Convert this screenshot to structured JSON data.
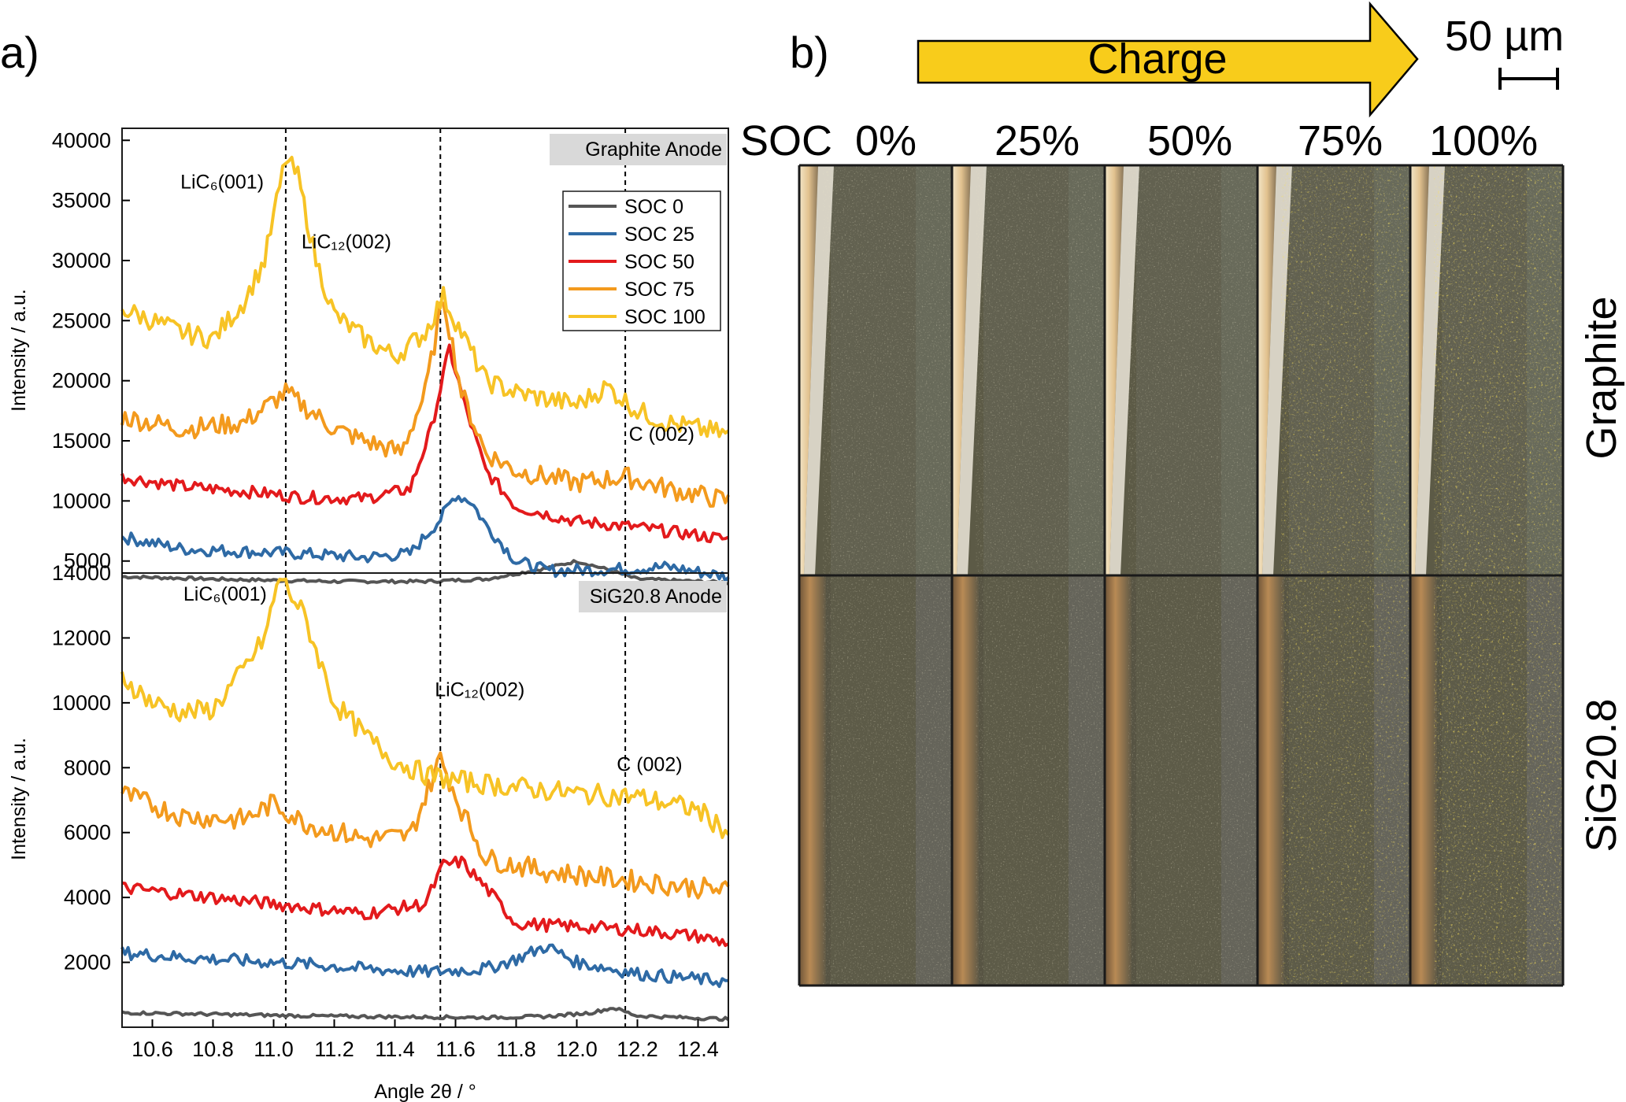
{
  "panel_a_label": "a)",
  "panel_b_label": "b)",
  "colors": {
    "SOC 0": "#555555",
    "SOC 25": "#2e6aa5",
    "SOC 50": "#e31a1c",
    "SOC 75": "#f39a1d",
    "SOC 100": "#f7c325",
    "frame": "#1a1a1a",
    "charge_arrow": "#f8cc1b"
  },
  "chart_data": [
    {
      "type": "line",
      "title": "Graphite Anode",
      "xlabel": "",
      "ylabel": "Intensity / a.u.",
      "xlim": [
        10.5,
        12.5
      ],
      "ylim": [
        4000,
        41000
      ],
      "yticks": [
        5000,
        10000,
        15000,
        20000,
        25000,
        30000,
        35000,
        40000
      ],
      "ytick_labels": [
        "5000",
        "10000",
        "15000",
        "20000",
        "25000",
        "30000",
        "35000",
        "40000"
      ],
      "reference_lines_x": [
        11.04,
        11.55,
        12.16
      ],
      "annotations": [
        {
          "text": "LiC₆(001)",
          "x": 10.83,
          "y": 36000
        },
        {
          "text": "LiC₁₂(002)",
          "x": 11.24,
          "y": 31000
        },
        {
          "text": "C (002)",
          "x": 12.28,
          "y": 15000
        }
      ],
      "legend_position": "top-right",
      "series": [
        {
          "name": "SOC 0",
          "x": [
            10.5,
            10.8,
            11.0,
            11.2,
            11.5,
            11.7,
            11.9,
            12.0,
            12.1,
            12.2,
            12.5
          ],
          "y": [
            3700,
            3500,
            3400,
            3300,
            3300,
            3500,
            4400,
            5000,
            4300,
            3500,
            3200
          ]
        },
        {
          "name": "SOC 25",
          "x": [
            10.5,
            10.7,
            10.9,
            11.1,
            11.3,
            11.45,
            11.55,
            11.6,
            11.65,
            11.7,
            11.8,
            11.9,
            12.1,
            12.3,
            12.5
          ],
          "y": [
            7000,
            6000,
            5800,
            5600,
            5300,
            5600,
            8500,
            10500,
            10000,
            8000,
            5000,
            4200,
            4300,
            4500,
            3700
          ]
        },
        {
          "name": "SOC 50",
          "x": [
            10.5,
            10.7,
            10.9,
            11.1,
            11.3,
            11.45,
            11.52,
            11.58,
            11.63,
            11.7,
            11.8,
            12.0,
            12.2,
            12.5
          ],
          "y": [
            12000,
            11200,
            10800,
            10300,
            10200,
            11000,
            16000,
            22700,
            18000,
            12500,
            9500,
            8300,
            7800,
            6800
          ]
        },
        {
          "name": "SOC 75",
          "x": [
            10.5,
            10.7,
            10.9,
            11.04,
            11.2,
            11.3,
            11.42,
            11.5,
            11.56,
            11.62,
            11.7,
            11.8,
            12.0,
            12.16,
            12.3,
            12.5
          ],
          "y": [
            17000,
            16000,
            16500,
            19000,
            16000,
            15000,
            14000,
            19000,
            27000,
            19000,
            14000,
            12500,
            11500,
            12000,
            11000,
            10000
          ]
        },
        {
          "name": "SOC 100",
          "x": [
            10.5,
            10.6,
            10.7,
            10.8,
            10.9,
            10.97,
            11.04,
            11.08,
            11.14,
            11.2,
            11.3,
            11.4,
            11.5,
            11.56,
            11.62,
            11.7,
            11.8,
            12.0,
            12.1,
            12.2,
            12.3,
            12.5
          ],
          "y": [
            26000,
            25000,
            24000,
            23500,
            26500,
            30000,
            38500,
            37000,
            30000,
            25500,
            23500,
            22000,
            24000,
            27000,
            24000,
            20000,
            19000,
            18000,
            19500,
            17500,
            16500,
            15500
          ]
        }
      ]
    },
    {
      "type": "line",
      "title": "SiG20.8 Anode",
      "xlabel": "Angle 2θ / °",
      "ylabel": "Intensity / a.u.",
      "xlim": [
        10.5,
        12.5
      ],
      "ylim": [
        0,
        14000
      ],
      "xticks": [
        10.6,
        10.8,
        11.0,
        11.2,
        11.4,
        11.6,
        11.8,
        12.0,
        12.2,
        12.4
      ],
      "xtick_labels": [
        "10.6",
        "10.8",
        "11.0",
        "11.2",
        "11.4",
        "11.6",
        "11.8",
        "12.0",
        "12.2",
        "12.4"
      ],
      "yticks": [
        2000,
        4000,
        6000,
        8000,
        10000,
        12000,
        14000
      ],
      "ytick_labels": [
        "2000",
        "4000",
        "6000",
        "8000",
        "10000",
        "12000",
        "14000"
      ],
      "reference_lines_x": [
        11.04,
        11.55,
        12.16
      ],
      "annotations": [
        {
          "text": "LiC₆(001)",
          "x": 10.84,
          "y": 13150
        },
        {
          "text": "LiC₁₂(002)",
          "x": 11.68,
          "y": 10200
        },
        {
          "text": "C (002)",
          "x": 12.24,
          "y": 7900
        }
      ],
      "series": [
        {
          "name": "SOC 0",
          "x": [
            10.5,
            10.8,
            11.1,
            11.4,
            11.7,
            11.9,
            12.05,
            12.12,
            12.2,
            12.5
          ],
          "y": [
            450,
            400,
            350,
            320,
            300,
            330,
            450,
            600,
            350,
            250
          ]
        },
        {
          "name": "SOC 25",
          "x": [
            10.5,
            10.7,
            10.9,
            11.1,
            11.3,
            11.5,
            11.7,
            11.8,
            11.9,
            12.0,
            12.2,
            12.5
          ],
          "y": [
            2300,
            2150,
            2050,
            1950,
            1800,
            1700,
            1800,
            2100,
            2500,
            2000,
            1650,
            1400
          ]
        },
        {
          "name": "SOC 50",
          "x": [
            10.5,
            10.7,
            10.9,
            11.1,
            11.3,
            11.5,
            11.56,
            11.62,
            11.7,
            11.8,
            12.0,
            12.2,
            12.4,
            12.5
          ],
          "y": [
            4300,
            4100,
            3900,
            3700,
            3500,
            3800,
            5000,
            5100,
            4300,
            3200,
            3100,
            3000,
            2800,
            2600
          ]
        },
        {
          "name": "SOC 75",
          "x": [
            10.5,
            10.7,
            10.9,
            11.0,
            11.1,
            11.3,
            11.45,
            11.55,
            11.62,
            11.7,
            11.9,
            12.1,
            12.3,
            12.5
          ],
          "y": [
            7200,
            6500,
            6400,
            6900,
            6300,
            5800,
            5900,
            8300,
            6700,
            5200,
            4800,
            4600,
            4400,
            4200
          ]
        },
        {
          "name": "SOC 100",
          "x": [
            10.5,
            10.6,
            10.7,
            10.8,
            10.9,
            10.97,
            11.02,
            11.06,
            11.1,
            11.2,
            11.3,
            11.4,
            11.5,
            11.6,
            11.8,
            12.0,
            12.2,
            12.4,
            12.5
          ],
          "y": [
            10800,
            10000,
            9700,
            9800,
            11000,
            12000,
            13900,
            13300,
            12700,
            10000,
            9000,
            8200,
            7800,
            7600,
            7400,
            7200,
            7100,
            6700,
            6000
          ]
        }
      ]
    }
  ],
  "panel_b": {
    "charge_label": "Charge",
    "scale_bar_label": "50 µm",
    "soc_prefix": "SOC",
    "columns": [
      "0%",
      "25%",
      "50%",
      "75%",
      "100%"
    ],
    "rows": [
      "Graphite",
      "SiG20.8"
    ]
  }
}
